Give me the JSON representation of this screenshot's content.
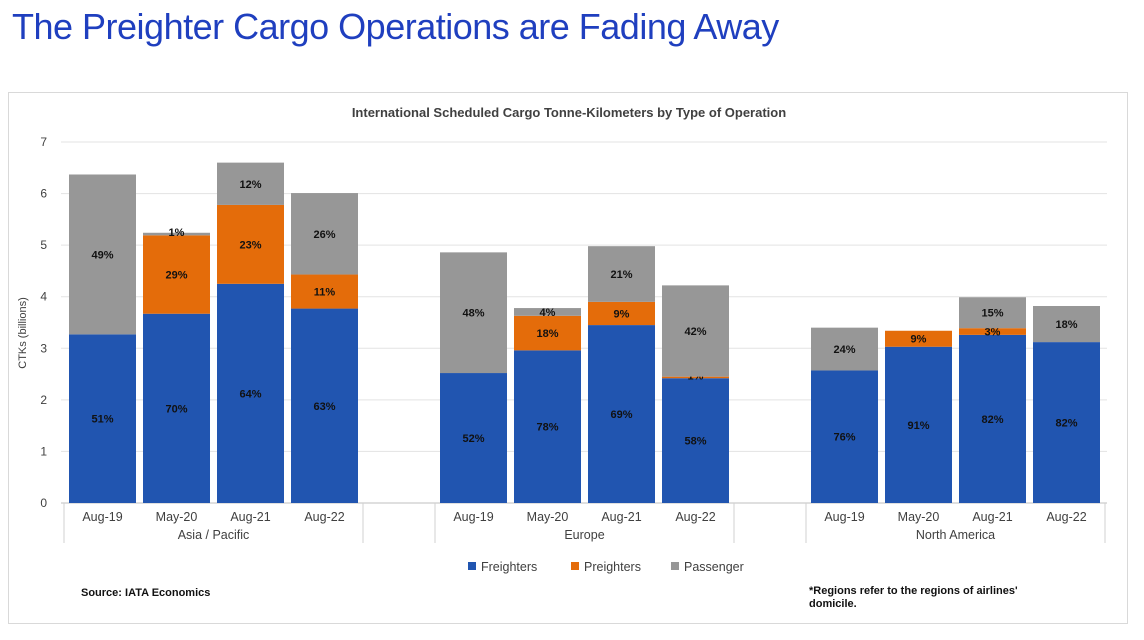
{
  "page_title": "The Preighter Cargo Operations are Fading Away",
  "chart_data": {
    "type": "bar",
    "stacked": true,
    "title": "International Scheduled Cargo Tonne-Kilometers by Type of Operation",
    "ylabel": "CTKs (billions)",
    "xlabel": "",
    "ylim": [
      0,
      7
    ],
    "yticks": [
      0,
      1,
      2,
      3,
      4,
      5,
      6,
      7
    ],
    "grid": true,
    "legend_position": "bottom",
    "groups": [
      {
        "name": "Asia / Pacific",
        "categories": [
          "Aug-19",
          "May-20",
          "Aug-21",
          "Aug-22"
        ]
      },
      {
        "name": "Europe",
        "categories": [
          "Aug-19",
          "May-20",
          "Aug-21",
          "Aug-22"
        ]
      },
      {
        "name": "North America",
        "categories": [
          "Aug-19",
          "May-20",
          "Aug-21",
          "Aug-22"
        ]
      }
    ],
    "series": [
      {
        "name": "Freighters",
        "color": "#2155b0",
        "values": [
          3.27,
          3.67,
          4.25,
          3.77,
          2.52,
          2.96,
          3.45,
          2.42,
          2.57,
          3.03,
          3.26,
          3.12
        ],
        "labels": [
          "51%",
          "70%",
          "64%",
          "63%",
          "52%",
          "78%",
          "69%",
          "58%",
          "76%",
          "91%",
          "82%",
          "82%"
        ]
      },
      {
        "name": "Preighters",
        "color": "#e46c0a",
        "values": [
          0,
          1.52,
          1.53,
          0.66,
          0,
          0.67,
          0.45,
          0.03,
          0,
          0.31,
          0.13,
          0
        ],
        "labels": [
          "",
          "29%",
          "23%",
          "11%",
          "",
          "18%",
          "9%",
          "1%",
          "",
          "9%",
          "3%",
          ""
        ]
      },
      {
        "name": "Passenger",
        "color": "#979797",
        "values": [
          3.1,
          0.05,
          0.82,
          1.58,
          2.34,
          0.15,
          1.08,
          1.77,
          0.83,
          0,
          0.6,
          0.7
        ],
        "labels": [
          "49%",
          "1%",
          "12%",
          "26%",
          "48%",
          "4%",
          "21%",
          "42%",
          "24%",
          "",
          "15%",
          "18%"
        ]
      }
    ]
  },
  "footer": {
    "source": "Source: IATA Economics",
    "note_line1": "*Regions refer to the regions of airlines'",
    "note_line2": "domicile."
  }
}
